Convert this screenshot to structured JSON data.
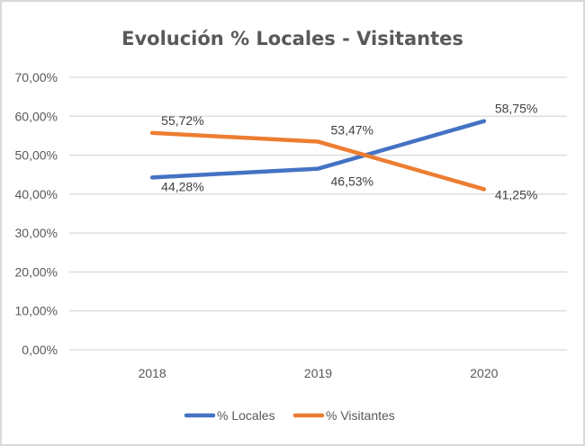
{
  "chart_data": {
    "type": "line",
    "title": "Evolución % Locales - Visitantes",
    "categories": [
      "2018",
      "2019",
      "2020"
    ],
    "series": [
      {
        "name": "% Locales",
        "color": "#4472C4",
        "values": [
          44.28,
          46.53,
          58.75
        ],
        "labels": [
          "44,28%",
          "46,53%",
          "58,75%"
        ]
      },
      {
        "name": "% Visitantes",
        "color": "#ED7D31",
        "values": [
          55.72,
          53.47,
          41.25
        ],
        "labels": [
          "55,72%",
          "53,47%",
          "41,25%"
        ]
      }
    ],
    "ylim": [
      0,
      70
    ],
    "yticks": [
      "0,00%",
      "10,00%",
      "20,00%",
      "30,00%",
      "40,00%",
      "50,00%",
      "60,00%",
      "70,00%"
    ],
    "grid": true,
    "legend": "bottom",
    "xlabel": "",
    "ylabel": ""
  }
}
